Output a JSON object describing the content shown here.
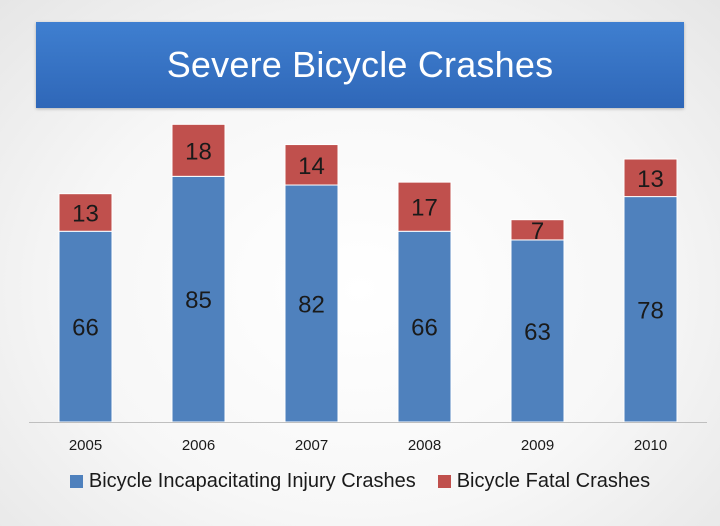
{
  "chart_data": {
    "type": "bar",
    "stacked": true,
    "title": "Severe Bicycle Crashes",
    "categories": [
      "2005",
      "2006",
      "2007",
      "2008",
      "2009",
      "2010"
    ],
    "series": [
      {
        "name": "Bicycle Incapacitating Injury Crashes",
        "values": [
          66,
          85,
          82,
          66,
          63,
          78
        ],
        "color": "#4f81bd"
      },
      {
        "name": "Bicycle Fatal Crashes",
        "values": [
          13,
          18,
          14,
          17,
          7,
          13
        ],
        "color": "#c0504d"
      }
    ],
    "xlabel": "",
    "ylabel": "",
    "legend": "bottom",
    "grid": false
  }
}
